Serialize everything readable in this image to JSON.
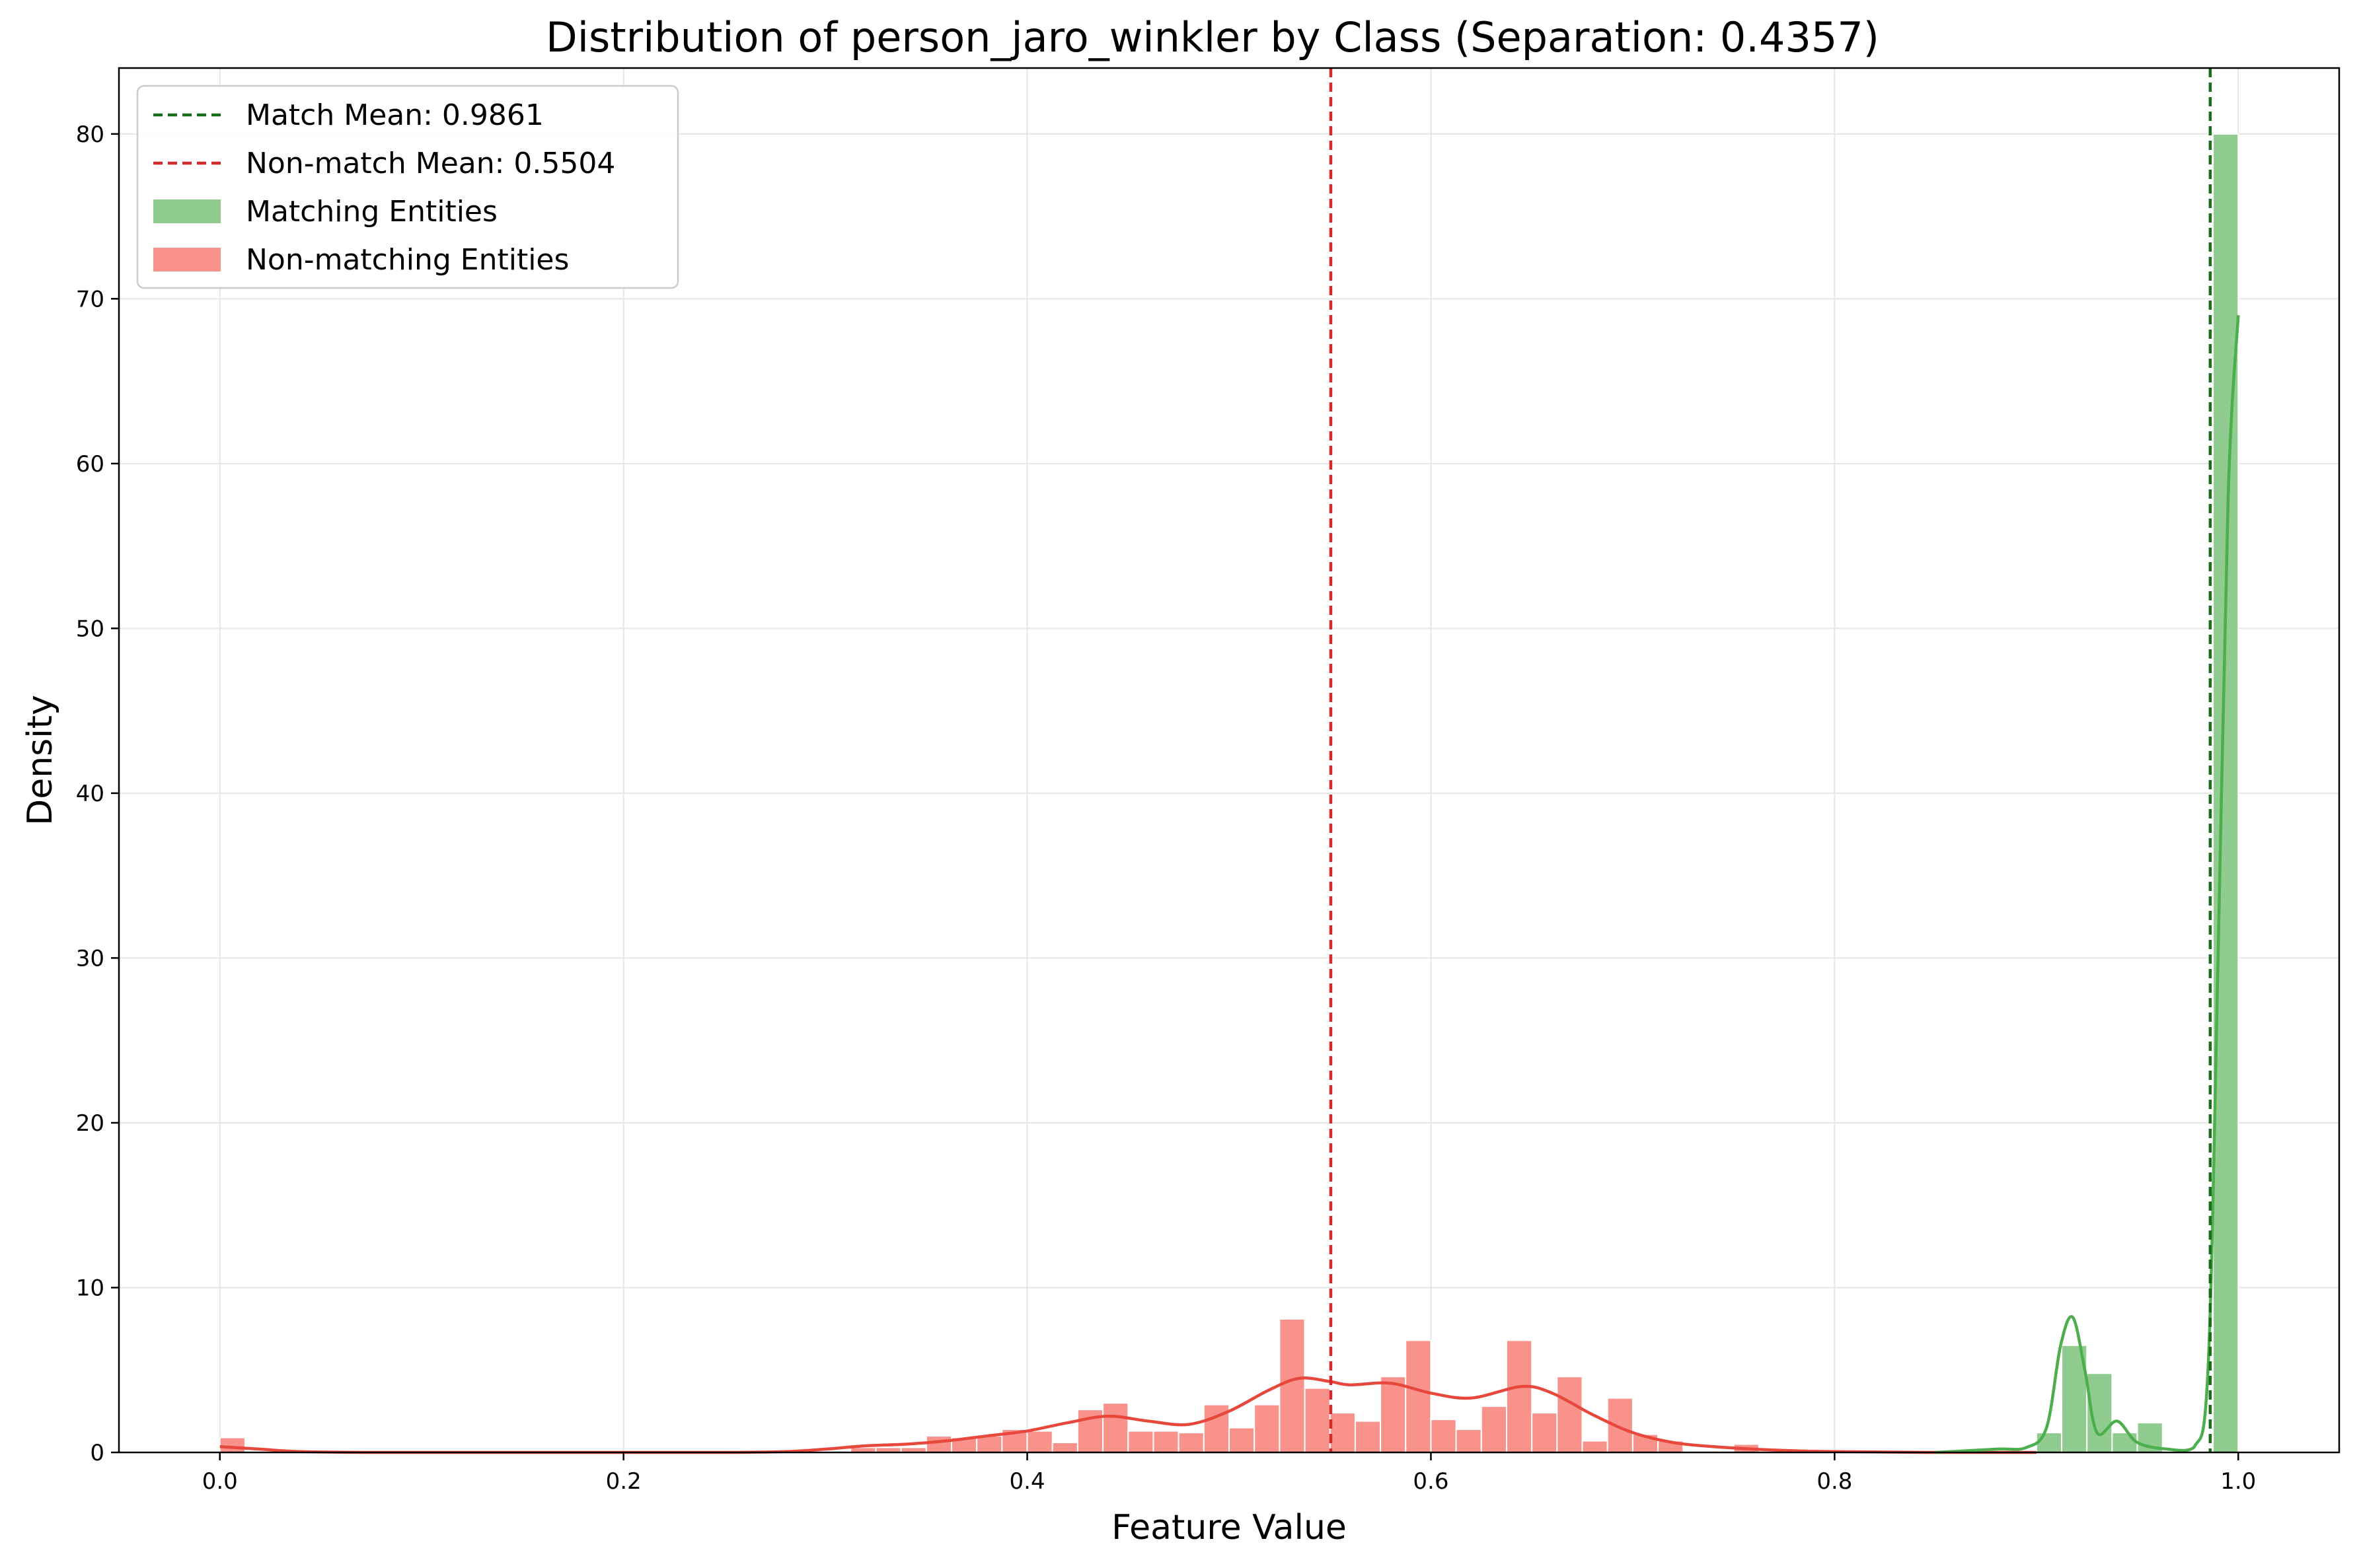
{
  "chart_data": {
    "type": "bar",
    "title": "Distribution of person_jaro_winkler by Class (Separation: 0.4357)",
    "xlabel": "Feature Value",
    "ylabel": "Density",
    "xlim": [
      -0.05,
      1.05
    ],
    "ylim": [
      0,
      84
    ],
    "xticks": [
      "0.0",
      "0.2",
      "0.4",
      "0.6",
      "0.8",
      "1.0"
    ],
    "yticks": [
      "0",
      "10",
      "20",
      "30",
      "40",
      "50",
      "60",
      "70",
      "80"
    ],
    "grid": true,
    "legend_position": "top-left",
    "bin_width": 0.0125,
    "series": [
      {
        "name": "Matching Entities",
        "color": "#90cc90",
        "bins": [
          {
            "x": 0.9,
            "y": 1.2
          },
          {
            "x": 0.9125,
            "y": 6.5
          },
          {
            "x": 0.925,
            "y": 4.8
          },
          {
            "x": 0.9375,
            "y": 1.2
          },
          {
            "x": 0.95,
            "y": 1.8
          },
          {
            "x": 0.9875,
            "y": 80.0
          }
        ],
        "kde": {
          "color": "#4cae4c",
          "x": [
            0.85,
            0.88,
            0.895,
            0.905,
            0.912,
            0.918,
            0.924,
            0.93,
            0.94,
            0.95,
            0.965,
            0.978,
            0.985,
            0.99,
            0.995,
            1.0
          ],
          "y": [
            0.0,
            0.2,
            0.3,
            1.5,
            6.5,
            8.2,
            5.0,
            1.2,
            1.9,
            0.6,
            0.2,
            0.3,
            5.0,
            30.0,
            58.0,
            69.0
          ]
        }
      },
      {
        "name": "Non-matching Entities",
        "color": "#f8928a",
        "bins": [
          {
            "x": 0.0,
            "y": 0.9
          },
          {
            "x": 0.3125,
            "y": 0.3
          },
          {
            "x": 0.325,
            "y": 0.3
          },
          {
            "x": 0.3375,
            "y": 0.3
          },
          {
            "x": 0.35,
            "y": 1.0
          },
          {
            "x": 0.3625,
            "y": 0.9
          },
          {
            "x": 0.375,
            "y": 1.0
          },
          {
            "x": 0.3875,
            "y": 1.4
          },
          {
            "x": 0.4,
            "y": 1.3
          },
          {
            "x": 0.4125,
            "y": 0.6
          },
          {
            "x": 0.425,
            "y": 2.6
          },
          {
            "x": 0.4375,
            "y": 3.0
          },
          {
            "x": 0.45,
            "y": 1.3
          },
          {
            "x": 0.4625,
            "y": 1.3
          },
          {
            "x": 0.475,
            "y": 1.2
          },
          {
            "x": 0.4875,
            "y": 2.9
          },
          {
            "x": 0.5,
            "y": 1.5
          },
          {
            "x": 0.5125,
            "y": 2.9
          },
          {
            "x": 0.525,
            "y": 8.1
          },
          {
            "x": 0.5375,
            "y": 3.9
          },
          {
            "x": 0.55,
            "y": 2.4
          },
          {
            "x": 0.5625,
            "y": 1.9
          },
          {
            "x": 0.575,
            "y": 4.6
          },
          {
            "x": 0.5875,
            "y": 6.8
          },
          {
            "x": 0.6,
            "y": 2.0
          },
          {
            "x": 0.6125,
            "y": 1.4
          },
          {
            "x": 0.625,
            "y": 2.8
          },
          {
            "x": 0.6375,
            "y": 6.8
          },
          {
            "x": 0.65,
            "y": 2.4
          },
          {
            "x": 0.6625,
            "y": 4.6
          },
          {
            "x": 0.675,
            "y": 0.7
          },
          {
            "x": 0.6875,
            "y": 3.3
          },
          {
            "x": 0.7,
            "y": 1.1
          },
          {
            "x": 0.7125,
            "y": 0.7
          },
          {
            "x": 0.75,
            "y": 0.5
          }
        ],
        "kde": {
          "color": "#e8473b",
          "x": [
            0.0,
            0.02,
            0.04,
            0.08,
            0.15,
            0.2,
            0.25,
            0.28,
            0.3,
            0.32,
            0.34,
            0.36,
            0.38,
            0.4,
            0.42,
            0.44,
            0.46,
            0.48,
            0.5,
            0.52,
            0.535,
            0.55,
            0.56,
            0.58,
            0.6,
            0.62,
            0.645,
            0.66,
            0.68,
            0.7,
            0.72,
            0.74,
            0.76,
            0.78,
            0.8,
            0.85,
            0.9
          ],
          "y": [
            0.35,
            0.2,
            0.05,
            0.0,
            0.0,
            0.0,
            0.0,
            0.05,
            0.2,
            0.4,
            0.5,
            0.7,
            1.0,
            1.3,
            1.8,
            2.2,
            1.9,
            1.7,
            2.5,
            3.8,
            4.5,
            4.3,
            4.1,
            4.2,
            3.6,
            3.3,
            4.0,
            3.6,
            2.3,
            1.2,
            0.6,
            0.35,
            0.2,
            0.1,
            0.05,
            0.0,
            0.0
          ]
        }
      }
    ],
    "mean_lines": [
      {
        "label": "Match Mean: 0.9861",
        "value": 0.9861,
        "color": "#1a6e1a"
      },
      {
        "label": "Non-match Mean: 0.5504",
        "value": 0.5504,
        "color": "#d42a2a"
      }
    ]
  }
}
